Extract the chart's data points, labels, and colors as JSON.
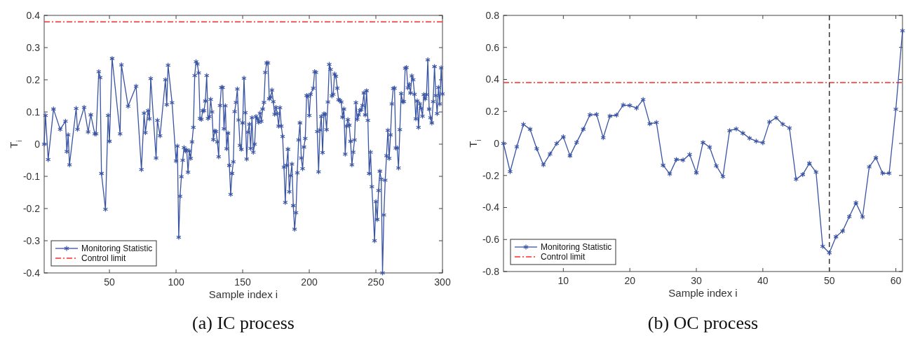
{
  "chart_data": [
    {
      "type": "line",
      "title": "(a) IC process",
      "xlabel": "Sample index i",
      "ylabel": "T$_{i}$",
      "xlim": [
        1,
        300
      ],
      "xticks": [
        50,
        100,
        150,
        200,
        250,
        300
      ],
      "ylim": [
        -0.4,
        0.4
      ],
      "yticks": [
        -0.4,
        -0.3,
        -0.2,
        -0.1,
        0,
        0.1,
        0.2,
        0.3,
        0.4
      ],
      "marker": "cross",
      "line_style": "solid",
      "legend": "bottom left",
      "grid": false,
      "series": [
        {
          "name": "Monitoring Statistic",
          "color": "#3953a4",
          "x": [
            1,
            2,
            4,
            8,
            13,
            17,
            18,
            19,
            20,
            25,
            26,
            31,
            34,
            36,
            39,
            40,
            42,
            43,
            44,
            47,
            49,
            50,
            52,
            58,
            59,
            64,
            70,
            74,
            76,
            77,
            79,
            80,
            81,
            85,
            86,
            88,
            92,
            93,
            94,
            97,
            100,
            101,
            102,
            103,
            104,
            105,
            106,
            107,
            108,
            109,
            110,
            111,
            112,
            113,
            114,
            115,
            116,
            117,
            118,
            119,
            120,
            121,
            122,
            123,
            124,
            125,
            126,
            127,
            128,
            129,
            130,
            131,
            132,
            133,
            134,
            135,
            136,
            137,
            138,
            139,
            140,
            141,
            142,
            143,
            144,
            145,
            146,
            147,
            148,
            149,
            150,
            151,
            152,
            153,
            154,
            155,
            156,
            157,
            158,
            159,
            160,
            161,
            162,
            163,
            164,
            165,
            166,
            167,
            168,
            169,
            170,
            171,
            172,
            173,
            174,
            175,
            176,
            177,
            178,
            179,
            180,
            181,
            182,
            183,
            184,
            185,
            186,
            187,
            188,
            189,
            190,
            191,
            192,
            193,
            194,
            195,
            196,
            197,
            198,
            199,
            200,
            201,
            203,
            204,
            205,
            206,
            207,
            208,
            209,
            210,
            211,
            212,
            213,
            214,
            215,
            216,
            217,
            218,
            219,
            220,
            221,
            222,
            223,
            224,
            225,
            226,
            227,
            228,
            229,
            230,
            231,
            232,
            233,
            234,
            235,
            236,
            237,
            238,
            239,
            240,
            241,
            242,
            243,
            244,
            245,
            246,
            247,
            249,
            250,
            251,
            252,
            253,
            254,
            255,
            256,
            257,
            258,
            259,
            260,
            261,
            262,
            263,
            264,
            265,
            266,
            267,
            268,
            269,
            270,
            271,
            272,
            273,
            274,
            275,
            276,
            277,
            278,
            279,
            280,
            281,
            282,
            283,
            284,
            285,
            286,
            287,
            288,
            289,
            290,
            291,
            292,
            293,
            294,
            295,
            296,
            297,
            298,
            299,
            300
          ],
          "values": [
            0,
            0.089,
            -0.048,
            0.109,
            0.046,
            0.071,
            -0.023,
            0.029,
            -0.064,
            0.111,
            0.046,
            0.114,
            0.038,
            0.091,
            0.032,
            0.032,
            0.225,
            0.207,
            -0.091,
            -0.202,
            0.089,
            0.009,
            0.266,
            0.032,
            0.246,
            0.118,
            0.18,
            -0.079,
            0.096,
            0.036,
            0.104,
            0.079,
            0.204,
            -0.043,
            0.074,
            0.026,
            0.2,
            0.123,
            0.245,
            0.129,
            -0.052,
            -0.006,
            -0.289,
            -0.162,
            -0.101,
            -0.05,
            -0.011,
            -0.021,
            -0.018,
            -0.087,
            -0.021,
            -0.044,
            0.007,
            0.052,
            0.213,
            0.256,
            0.249,
            0.221,
            0.08,
            0.077,
            0.104,
            0.104,
            0.134,
            0.213,
            0.08,
            0.086,
            0.139,
            0.1,
            0.014,
            0.041,
            0.039,
            0.007,
            -0.039,
            0.12,
            0.176,
            0.176,
            0.048,
            0.119,
            -0.014,
            0.034,
            -0.066,
            -0.156,
            -0.091,
            -0.055,
            0.101,
            0.13,
            0.171,
            0.075,
            -0.004,
            -0.016,
            0.066,
            0.205,
            0.098,
            -0.046,
            0.037,
            0.062,
            -0.013,
            0.082,
            -0.025,
            0,
            0.086,
            0.079,
            0.068,
            0.096,
            0.071,
            0.109,
            0.13,
            0.223,
            0.252,
            0.252,
            0.141,
            0.146,
            0.168,
            0.132,
            0.093,
            0.114,
            0.095,
            0.056,
            0.113,
            0.056,
            0.024,
            -0.071,
            -0.181,
            -0.066,
            -0.016,
            -0.148,
            -0.098,
            -0.062,
            -0.191,
            -0.264,
            -0.213,
            -0.089,
            0.013,
            0.066,
            -0.043,
            -0.076,
            -0.009,
            0.018,
            0.151,
            0.149,
            0.089,
            0.155,
            0.174,
            0.225,
            0.223,
            0.039,
            -0.086,
            0.044,
            0.086,
            -0.026,
            0.094,
            0.093,
            0.045,
            0.131,
            0.248,
            0.232,
            0.15,
            0.155,
            0.218,
            0.211,
            0.174,
            0.138,
            0.136,
            0.131,
            0.084,
            0.109,
            -0.031,
            0.056,
            0.076,
            0.059,
            0.009,
            -0.064,
            -0.025,
            0.013,
            0.129,
            0.077,
            0.091,
            0.105,
            0.107,
            0.12,
            0.159,
            0.091,
            0.166,
            0.074,
            -0.091,
            -0.025,
            -0.132,
            -0.3,
            -0.179,
            -0.234,
            -0.144,
            -0.084,
            -0.109,
            -0.4,
            -0.22,
            -0.112,
            -0.036,
            0.043,
            -0.044,
            0.029,
            0.125,
            0.173,
            0.174,
            -0.012,
            -0.012,
            -0.074,
            0.045,
            0.157,
            0.132,
            0.132,
            0.236,
            0.238,
            0.175,
            0.186,
            0.159,
            0.212,
            0.2,
            0.155,
            0.079,
            0.134,
            0.052,
            0.125,
            0.111,
            0.087,
            0.154,
            0.141,
            0.154,
            0.262,
            0.109,
            0.082,
            0.066,
            0.132,
            0.241,
            0.151,
            0.095,
            0.176,
            0.125,
            0.237,
            0.156
          ]
        }
      ],
      "ref_lines": [
        {
          "axis": "y",
          "value": 0.38,
          "label": "Control limit",
          "color": "#ff2a2a",
          "line_style": "dashdot"
        }
      ]
    },
    {
      "type": "line",
      "title": "(b) OC process",
      "xlabel": "Sample index i",
      "ylabel": "T$_{i}$",
      "xlim": [
        1,
        61
      ],
      "xticks": [
        10,
        20,
        30,
        40,
        50,
        60
      ],
      "ylim": [
        -0.8,
        0.8
      ],
      "yticks": [
        -0.8,
        -0.6,
        -0.4,
        -0.2,
        0,
        0.2,
        0.4,
        0.6,
        0.8
      ],
      "marker": "cross",
      "line_style": "solid",
      "legend": "bottom left",
      "grid": false,
      "series": [
        {
          "name": "Monitoring Statistic",
          "color": "#3953a4",
          "x": [
            1,
            2,
            3,
            4,
            5,
            6,
            7,
            8,
            9,
            10,
            11,
            12,
            13,
            14,
            15,
            16,
            17,
            18,
            19,
            20,
            21,
            22,
            23,
            24,
            25,
            26,
            27,
            28,
            29,
            30,
            31,
            32,
            33,
            34,
            35,
            36,
            37,
            38,
            39,
            40,
            41,
            42,
            43,
            44,
            45,
            46,
            47,
            48,
            49,
            50,
            51,
            52,
            53,
            54,
            55,
            56,
            57,
            58,
            59,
            60,
            61
          ],
          "values": [
            0,
            -0.176,
            -0.021,
            0.119,
            0.089,
            -0.033,
            -0.133,
            -0.066,
            0,
            0.041,
            -0.077,
            0.007,
            0.089,
            0.179,
            0.181,
            0.036,
            0.171,
            0.177,
            0.24,
            0.237,
            0.221,
            0.274,
            0.123,
            0.131,
            -0.136,
            -0.19,
            -0.1,
            -0.104,
            -0.069,
            -0.183,
            0.006,
            -0.023,
            -0.14,
            -0.207,
            0.08,
            0.091,
            0.064,
            0.033,
            0.014,
            0.004,
            0.134,
            0.161,
            0.12,
            0.096,
            -0.223,
            -0.194,
            -0.124,
            -0.179,
            -0.643,
            -0.683,
            -0.583,
            -0.547,
            -0.457,
            -0.371,
            -0.459,
            -0.146,
            -0.089,
            -0.186,
            -0.186,
            0.214,
            0.704
          ]
        }
      ],
      "ref_lines": [
        {
          "axis": "y",
          "value": 0.38,
          "label": "Control limit",
          "color": "#ff2a2a",
          "line_style": "dashdot"
        },
        {
          "axis": "x",
          "value": 50,
          "color": "#333333",
          "line_style": "dashed"
        }
      ]
    }
  ]
}
